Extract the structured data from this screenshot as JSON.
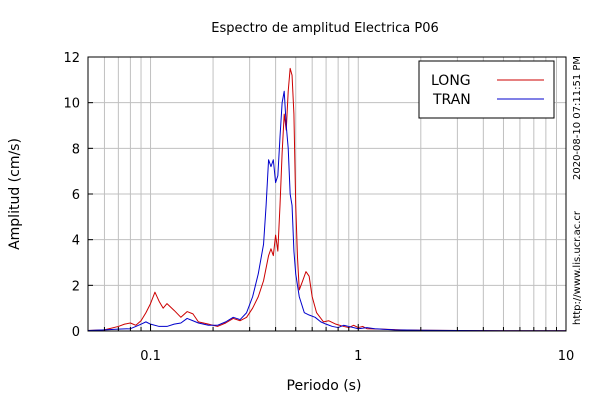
{
  "chart_data": {
    "type": "line",
    "title": "Espectro de amplitud Electrica P06",
    "xlabel": "Periodo (s)",
    "ylabel": "Amplitud (cm/s)",
    "xscale": "log",
    "xlim": [
      0.05,
      10
    ],
    "ylim": [
      0,
      12
    ],
    "x_ticks": [
      0.1,
      1,
      10
    ],
    "x_tick_labels": [
      "0.1",
      "1",
      "10"
    ],
    "y_ticks": [
      0,
      2,
      4,
      6,
      8,
      10,
      12
    ],
    "y_tick_labels": [
      "0",
      "2",
      "4",
      "6",
      "8",
      "10",
      "12"
    ],
    "grid": true,
    "legend": "top-right",
    "side_text": [
      "http://www.lis.ucr.ac.cr",
      "2020-08-10 07:11:51 PM"
    ],
    "series": [
      {
        "name": "LONG",
        "color": "#cc0000",
        "points": [
          [
            0.05,
            0.02
          ],
          [
            0.06,
            0.05
          ],
          [
            0.07,
            0.2
          ],
          [
            0.075,
            0.3
          ],
          [
            0.08,
            0.35
          ],
          [
            0.085,
            0.25
          ],
          [
            0.09,
            0.45
          ],
          [
            0.095,
            0.8
          ],
          [
            0.1,
            1.2
          ],
          [
            0.105,
            1.7
          ],
          [
            0.11,
            1.3
          ],
          [
            0.115,
            1.0
          ],
          [
            0.12,
            1.2
          ],
          [
            0.13,
            0.9
          ],
          [
            0.14,
            0.6
          ],
          [
            0.15,
            0.85
          ],
          [
            0.16,
            0.75
          ],
          [
            0.17,
            0.4
          ],
          [
            0.19,
            0.3
          ],
          [
            0.21,
            0.2
          ],
          [
            0.23,
            0.35
          ],
          [
            0.25,
            0.55
          ],
          [
            0.27,
            0.45
          ],
          [
            0.29,
            0.6
          ],
          [
            0.31,
            1.0
          ],
          [
            0.33,
            1.5
          ],
          [
            0.35,
            2.2
          ],
          [
            0.37,
            3.3
          ],
          [
            0.38,
            3.6
          ],
          [
            0.39,
            3.3
          ],
          [
            0.4,
            4.2
          ],
          [
            0.41,
            3.5
          ],
          [
            0.42,
            5.5
          ],
          [
            0.43,
            7.8
          ],
          [
            0.44,
            9.5
          ],
          [
            0.45,
            8.8
          ],
          [
            0.46,
            10.5
          ],
          [
            0.47,
            11.5
          ],
          [
            0.48,
            11.2
          ],
          [
            0.49,
            9.5
          ],
          [
            0.5,
            5.5
          ],
          [
            0.51,
            3.2
          ],
          [
            0.52,
            1.8
          ],
          [
            0.54,
            2.2
          ],
          [
            0.56,
            2.6
          ],
          [
            0.58,
            2.4
          ],
          [
            0.6,
            1.5
          ],
          [
            0.63,
            0.8
          ],
          [
            0.68,
            0.4
          ],
          [
            0.72,
            0.45
          ],
          [
            0.78,
            0.3
          ],
          [
            0.85,
            0.2
          ],
          [
            0.9,
            0.15
          ],
          [
            0.95,
            0.25
          ],
          [
            1.0,
            0.15
          ],
          [
            1.05,
            0.2
          ],
          [
            1.1,
            0.1
          ],
          [
            1.3,
            0.08
          ],
          [
            1.6,
            0.05
          ],
          [
            2.0,
            0.03
          ],
          [
            3.0,
            0.02
          ],
          [
            5.0,
            0.01
          ],
          [
            10.0,
            0.01
          ]
        ]
      },
      {
        "name": "TRAN",
        "color": "#0000cc",
        "points": [
          [
            0.05,
            0.02
          ],
          [
            0.06,
            0.05
          ],
          [
            0.07,
            0.08
          ],
          [
            0.08,
            0.1
          ],
          [
            0.085,
            0.2
          ],
          [
            0.09,
            0.3
          ],
          [
            0.095,
            0.4
          ],
          [
            0.1,
            0.3
          ],
          [
            0.11,
            0.2
          ],
          [
            0.12,
            0.2
          ],
          [
            0.13,
            0.3
          ],
          [
            0.14,
            0.35
          ],
          [
            0.15,
            0.55
          ],
          [
            0.16,
            0.45
          ],
          [
            0.17,
            0.35
          ],
          [
            0.19,
            0.25
          ],
          [
            0.21,
            0.25
          ],
          [
            0.23,
            0.4
          ],
          [
            0.25,
            0.6
          ],
          [
            0.27,
            0.5
          ],
          [
            0.29,
            0.8
          ],
          [
            0.31,
            1.5
          ],
          [
            0.33,
            2.5
          ],
          [
            0.35,
            3.8
          ],
          [
            0.36,
            5.5
          ],
          [
            0.37,
            7.5
          ],
          [
            0.38,
            7.2
          ],
          [
            0.39,
            7.5
          ],
          [
            0.4,
            6.5
          ],
          [
            0.41,
            6.8
          ],
          [
            0.42,
            8.5
          ],
          [
            0.43,
            10.0
          ],
          [
            0.44,
            10.5
          ],
          [
            0.45,
            9.0
          ],
          [
            0.46,
            8.0
          ],
          [
            0.47,
            6.0
          ],
          [
            0.48,
            5.5
          ],
          [
            0.49,
            3.5
          ],
          [
            0.5,
            2.5
          ],
          [
            0.52,
            1.5
          ],
          [
            0.55,
            0.8
          ],
          [
            0.58,
            0.7
          ],
          [
            0.62,
            0.6
          ],
          [
            0.66,
            0.4
          ],
          [
            0.7,
            0.3
          ],
          [
            0.75,
            0.2
          ],
          [
            0.8,
            0.15
          ],
          [
            0.85,
            0.25
          ],
          [
            0.9,
            0.2
          ],
          [
            1.0,
            0.1
          ],
          [
            1.1,
            0.15
          ],
          [
            1.2,
            0.1
          ],
          [
            1.5,
            0.05
          ],
          [
            2.0,
            0.03
          ],
          [
            3.0,
            0.02
          ],
          [
            5.0,
            0.01
          ],
          [
            10.0,
            0.01
          ]
        ]
      }
    ]
  }
}
